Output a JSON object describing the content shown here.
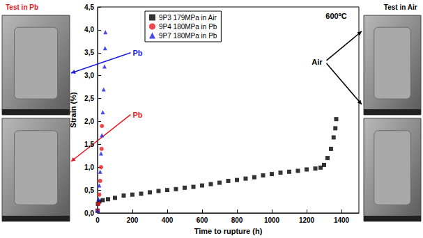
{
  "chart_data": {
    "type": "scatter",
    "xlabel": "Time to rupture (h)",
    "ylabel": "Strain (%)",
    "xlim": [
      0,
      1500
    ],
    "xticks": [
      0,
      200,
      400,
      600,
      800,
      1000,
      1200,
      1400
    ],
    "ylim": [
      0,
      4.5
    ],
    "yticks": [
      {
        "value": 0,
        "label": "0,0"
      },
      {
        "value": 0.5,
        "label": "0,5"
      },
      {
        "value": 1,
        "label": "1,0"
      },
      {
        "value": 1.5,
        "label": "1,5"
      },
      {
        "value": 2,
        "label": "2,0"
      },
      {
        "value": 2.5,
        "label": "2,5"
      },
      {
        "value": 3,
        "label": "3,0"
      },
      {
        "value": 3.5,
        "label": "3,5"
      },
      {
        "value": 4,
        "label": "4,0"
      },
      {
        "value": 4.5,
        "label": "4,5"
      }
    ],
    "grid": false,
    "legend": "upper left",
    "series": [
      {
        "name": "9P3 179MPa in Air",
        "color": "#000000",
        "marker": "square",
        "x": [
          0,
          2,
          10,
          30,
          60,
          100,
          150,
          200,
          250,
          300,
          350,
          400,
          450,
          500,
          550,
          600,
          650,
          700,
          750,
          800,
          850,
          900,
          950,
          1000,
          1050,
          1100,
          1150,
          1200,
          1250,
          1280,
          1300,
          1320,
          1340,
          1355,
          1365,
          1370
        ],
        "values": [
          0.05,
          0.2,
          0.25,
          0.28,
          0.3,
          0.33,
          0.38,
          0.4,
          0.42,
          0.45,
          0.48,
          0.5,
          0.52,
          0.55,
          0.57,
          0.6,
          0.63,
          0.66,
          0.7,
          0.72,
          0.75,
          0.78,
          0.82,
          0.85,
          0.88,
          0.9,
          0.92,
          0.95,
          0.97,
          0.99,
          1.05,
          1.2,
          1.4,
          1.65,
          1.85,
          2.05
        ]
      },
      {
        "name": "9P4 180MPa in Pb",
        "color": "#e8141b",
        "marker": "circle",
        "x": [
          0,
          5,
          10,
          15,
          20,
          23,
          25
        ],
        "values": [
          0.05,
          0.2,
          0.4,
          0.7,
          1.0,
          1.4,
          1.9
        ]
      },
      {
        "name": "9P7 180MPa in Pb",
        "color": "#1a1ae6",
        "marker": "triangle",
        "x": [
          0,
          5,
          10,
          15,
          20,
          25,
          30,
          35,
          40,
          43,
          45
        ],
        "values": [
          0.05,
          0.3,
          0.6,
          0.9,
          1.3,
          1.7,
          2.2,
          2.7,
          3.2,
          3.6,
          3.95
        ]
      }
    ],
    "annotations": [
      {
        "text": "600ºC",
        "x": 1370,
        "y": 4.3,
        "color": "#000000"
      },
      {
        "text": "Pb",
        "x": 230,
        "y": 3.5,
        "color": "#1a1ae6"
      },
      {
        "text": "Pb",
        "x": 230,
        "y": 2.15,
        "color": "#e8141b"
      },
      {
        "text": "Air",
        "x": 1260,
        "y": 3.3,
        "color": "#000000"
      }
    ],
    "image_captions": [
      {
        "text": "Test in Pb",
        "color": "#e8141b"
      },
      {
        "text": "Test in Air",
        "color": "#000000"
      }
    ]
  }
}
